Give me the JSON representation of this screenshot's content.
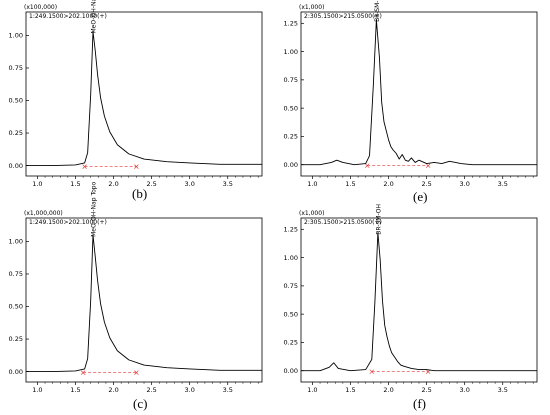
{
  "chart_data": [
    {
      "type": "line",
      "panel": "(b)",
      "scale_label": "(x100,000)",
      "trace_label": "1:249.1500>202.1000(+)",
      "peak_label": "MeO-OH-Nap Topo",
      "xlim": [
        0.85,
        3.95
      ],
      "ylim": [
        -0.08,
        1.18
      ],
      "xticks": [
        "1.0",
        "1.5",
        "2.0",
        "2.5",
        "3.0",
        "3.5"
      ],
      "yticks": [
        "0.00",
        "0.25",
        "0.50",
        "0.75",
        "1.00"
      ],
      "series": [
        {
          "x": [
            0.85,
            1.2,
            1.5,
            1.62,
            1.66,
            1.7,
            1.73,
            1.76,
            1.79,
            1.83,
            1.88,
            1.95,
            2.05,
            2.2,
            2.4,
            2.7,
            3.0,
            3.4,
            3.95
          ],
          "y": [
            0.0,
            0.0,
            0.005,
            0.02,
            0.1,
            0.55,
            1.03,
            0.88,
            0.7,
            0.52,
            0.38,
            0.26,
            0.16,
            0.09,
            0.05,
            0.03,
            0.02,
            0.01,
            0.01
          ]
        }
      ],
      "baseline": {
        "x": [
          1.62,
          2.3
        ],
        "y": [
          0.0,
          0.0
        ]
      }
    },
    {
      "type": "line",
      "panel": "(e)",
      "scale_label": "(x1,000)",
      "trace_label": "2:305.1500>215.0500(+)",
      "peak_label": "BR-SM-OH",
      "xlim": [
        0.85,
        3.95
      ],
      "ylim": [
        -0.1,
        1.35
      ],
      "xticks": [
        "1.0",
        "1.5",
        "2.0",
        "2.5",
        "3.0",
        "3.5"
      ],
      "yticks": [
        "0.00",
        "0.25",
        "0.50",
        "0.75",
        "1.00",
        "1.25"
      ],
      "series": [
        {
          "x": [
            0.85,
            1.1,
            1.25,
            1.32,
            1.4,
            1.55,
            1.7,
            1.75,
            1.8,
            1.84,
            1.88,
            1.91,
            1.94,
            1.97,
            2.0,
            2.03,
            2.06,
            2.1,
            2.14,
            2.18,
            2.22,
            2.26,
            2.3,
            2.35,
            2.4,
            2.5,
            2.6,
            2.7,
            2.8,
            2.88,
            2.95,
            3.1,
            3.4,
            3.95
          ],
          "y": [
            0.0,
            0.0,
            0.02,
            0.04,
            0.02,
            0.0,
            0.01,
            0.08,
            0.7,
            1.28,
            0.95,
            0.55,
            0.38,
            0.3,
            0.22,
            0.16,
            0.13,
            0.1,
            0.05,
            0.09,
            0.04,
            0.03,
            0.06,
            0.02,
            0.04,
            0.01,
            0.02,
            0.01,
            0.03,
            0.02,
            0.01,
            0.0,
            0.0,
            0.0
          ]
        }
      ],
      "baseline": {
        "x": [
          1.72,
          2.52
        ],
        "y": [
          0.0,
          0.0
        ]
      }
    },
    {
      "type": "line",
      "panel": "(c)",
      "scale_label": "(x1,000,000)",
      "trace_label": "1:249.1500>202.1000(+)",
      "peak_label": "MeO-OH-Nap Topo",
      "xlim": [
        0.85,
        3.95
      ],
      "ylim": [
        -0.08,
        1.18
      ],
      "xticks": [
        "1.0",
        "1.5",
        "2.0",
        "2.5",
        "3.0",
        "3.5"
      ],
      "yticks": [
        "0.00",
        "0.25",
        "0.50",
        "0.75",
        "1.00"
      ],
      "series": [
        {
          "x": [
            0.85,
            1.2,
            1.5,
            1.62,
            1.66,
            1.7,
            1.73,
            1.76,
            1.79,
            1.83,
            1.88,
            1.95,
            2.05,
            2.2,
            2.4,
            2.7,
            3.0,
            3.4,
            3.95
          ],
          "y": [
            0.0,
            0.0,
            0.005,
            0.02,
            0.1,
            0.55,
            1.05,
            0.88,
            0.7,
            0.52,
            0.38,
            0.26,
            0.16,
            0.09,
            0.05,
            0.03,
            0.02,
            0.01,
            0.01
          ]
        }
      ],
      "baseline": {
        "x": [
          1.6,
          2.3
        ],
        "y": [
          0.0,
          0.0
        ]
      }
    },
    {
      "type": "line",
      "panel": "(f)",
      "scale_label": "(x1,000)",
      "trace_label": "2:305.1500>215.0500(+)",
      "peak_label": "BR-SM-OH",
      "xlim": [
        0.85,
        3.95
      ],
      "ylim": [
        -0.1,
        1.35
      ],
      "xticks": [
        "1.0",
        "1.5",
        "2.0",
        "2.5",
        "3.0",
        "3.5"
      ],
      "yticks": [
        "0.00",
        "0.25",
        "0.50",
        "0.75",
        "1.00",
        "1.25"
      ],
      "series": [
        {
          "x": [
            0.85,
            1.1,
            1.22,
            1.28,
            1.34,
            1.5,
            1.7,
            1.78,
            1.82,
            1.86,
            1.89,
            1.92,
            1.95,
            1.98,
            2.01,
            2.04,
            2.08,
            2.12,
            2.16,
            2.2,
            2.25,
            2.3,
            2.4,
            2.5,
            2.6,
            3.0,
            3.5,
            3.95
          ],
          "y": [
            0.0,
            0.0,
            0.03,
            0.07,
            0.02,
            0.0,
            0.01,
            0.1,
            0.6,
            1.22,
            0.98,
            0.62,
            0.4,
            0.3,
            0.22,
            0.16,
            0.12,
            0.08,
            0.05,
            0.04,
            0.03,
            0.02,
            0.01,
            0.01,
            0.0,
            0.0,
            0.0,
            0.0
          ]
        }
      ],
      "baseline": {
        "x": [
          1.78,
          2.52
        ],
        "y": [
          0.0,
          0.0
        ]
      }
    }
  ]
}
